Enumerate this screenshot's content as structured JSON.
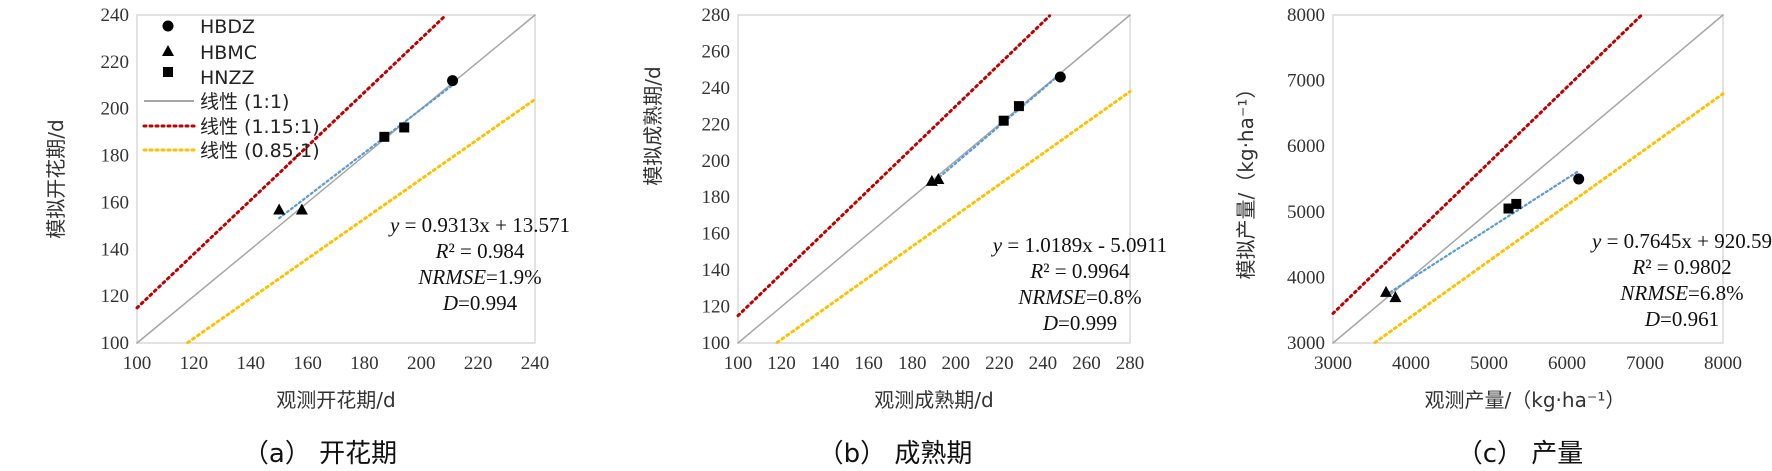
{
  "captions": [
    "（a） 开花期",
    "（b） 成熟期",
    "（c） 产量"
  ],
  "legend": {
    "entries": [
      {
        "label": "HBDZ",
        "kind": "circle"
      },
      {
        "label": "HBMC",
        "kind": "triangle"
      },
      {
        "label": "HNZZ",
        "kind": "square"
      },
      {
        "label": "线性 (1:1)",
        "kind": "line",
        "color": "#a6a6a6"
      },
      {
        "label": "线性 (1.15:1)",
        "kind": "dotted",
        "color": "#c00000"
      },
      {
        "label": "线性 (0.85:1)",
        "kind": "dotted",
        "color": "#ffc000"
      }
    ]
  },
  "colors": {
    "one_to_one": "#a6a6a6",
    "upper": "#c00000",
    "lower": "#ffc000",
    "fit": "#5b9bd5",
    "marker": "#000000",
    "frame": "#d9d9d9"
  },
  "chart_data": [
    {
      "type": "scatter",
      "xlabel": "观测开花期/d",
      "ylabel": "模拟开花期/d",
      "xlim": [
        100,
        240
      ],
      "ylim": [
        100,
        240
      ],
      "xticks": [
        100,
        120,
        140,
        160,
        180,
        200,
        220,
        240
      ],
      "yticks": [
        100,
        120,
        140,
        160,
        180,
        200,
        220,
        240
      ],
      "legend": "top-left",
      "series": [
        {
          "name": "HBDZ",
          "marker": "circle",
          "x": [
            211
          ],
          "y": [
            212
          ]
        },
        {
          "name": "HBMC",
          "marker": "triangle",
          "x": [
            150,
            158
          ],
          "y": [
            157,
            157
          ]
        },
        {
          "name": "HNZZ",
          "marker": "square",
          "x": [
            187,
            194
          ],
          "y": [
            188,
            192
          ]
        }
      ],
      "reference_lines": [
        {
          "name": "线性 (1:1)",
          "slope": 1.0
        },
        {
          "name": "线性 (1.15:1)",
          "slope": 1.15
        },
        {
          "name": "线性 (0.85:1)",
          "slope": 0.85
        }
      ],
      "fit": {
        "slope": 0.9313,
        "intercept": 13.571,
        "x_range": [
          150,
          212
        ]
      },
      "annotation": {
        "eq": "y = 0.9313x + 13.571",
        "r2": "R² = 0.984",
        "nrmse": "NRMSE=1.9%",
        "d": "D=0.994"
      }
    },
    {
      "type": "scatter",
      "xlabel": "观测成熟期/d",
      "ylabel": "模拟成熟期/d",
      "xlim": [
        100,
        280
      ],
      "ylim": [
        100,
        280
      ],
      "xticks": [
        100,
        120,
        140,
        160,
        180,
        200,
        220,
        240,
        260,
        280
      ],
      "yticks": [
        100,
        120,
        140,
        160,
        180,
        200,
        220,
        240,
        260,
        280
      ],
      "series": [
        {
          "name": "HBDZ",
          "marker": "circle",
          "x": [
            248
          ],
          "y": [
            246
          ]
        },
        {
          "name": "HBMC",
          "marker": "triangle",
          "x": [
            189,
            192
          ],
          "y": [
            189,
            190
          ]
        },
        {
          "name": "HNZZ",
          "marker": "square",
          "x": [
            222,
            229
          ],
          "y": [
            222,
            230
          ]
        }
      ],
      "reference_lines": [
        {
          "name": "线性 (1:1)",
          "slope": 1.0
        },
        {
          "name": "线性 (1.15:1)",
          "slope": 1.15
        },
        {
          "name": "线性 (0.85:1)",
          "slope": 0.85
        }
      ],
      "fit": {
        "slope": 1.0189,
        "intercept": -5.0911,
        "x_range": [
          189,
          248
        ]
      },
      "annotation": {
        "eq": "y = 1.0189x - 5.0911",
        "r2": "R² = 0.9964",
        "nrmse": "NRMSE=0.8%",
        "d": "D=0.999"
      }
    },
    {
      "type": "scatter",
      "xlabel": "观测产量/（kg·ha⁻¹）",
      "ylabel": "模拟产量/（kg·ha⁻¹）",
      "xlim": [
        3000,
        8000
      ],
      "ylim": [
        3000,
        8000
      ],
      "xticks": [
        3000,
        4000,
        5000,
        6000,
        7000,
        8000
      ],
      "yticks": [
        3000,
        4000,
        5000,
        6000,
        7000,
        8000
      ],
      "series": [
        {
          "name": "HBDZ",
          "marker": "circle",
          "x": [
            6150
          ],
          "y": [
            5500
          ]
        },
        {
          "name": "HBMC",
          "marker": "triangle",
          "x": [
            3680,
            3800
          ],
          "y": [
            3780,
            3700
          ]
        },
        {
          "name": "HNZZ",
          "marker": "square",
          "x": [
            5250,
            5350
          ],
          "y": [
            5050,
            5120
          ]
        }
      ],
      "reference_lines": [
        {
          "name": "线性 (1:1)",
          "slope": 1.0
        },
        {
          "name": "线性 (1.15:1)",
          "slope": 1.15
        },
        {
          "name": "线性 (0.85:1)",
          "slope": 0.85
        }
      ],
      "fit": {
        "slope": 0.7645,
        "intercept": 920.59,
        "x_range": [
          3680,
          6150
        ]
      },
      "annotation": {
        "eq": "y = 0.7645x + 920.59",
        "r2": "R² = 0.9802",
        "nrmse": "NRMSE=6.8%",
        "d": "D=0.961"
      }
    }
  ]
}
